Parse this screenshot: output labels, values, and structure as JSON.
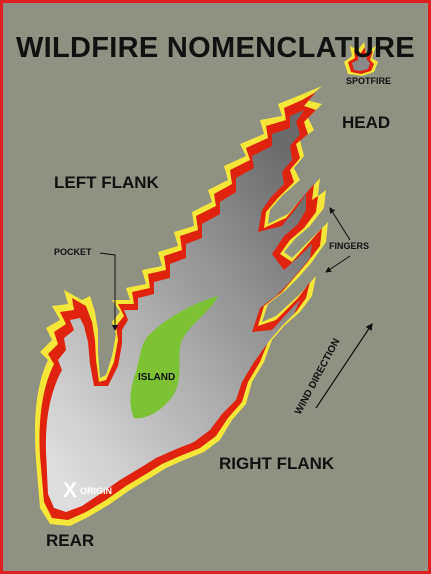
{
  "diagram": {
    "title": "WILDFIRE NOMENCLATURE",
    "labels": {
      "head": "HEAD",
      "left_flank": "LEFT FLANK",
      "right_flank": "RIGHT FLANK",
      "rear": "REAR",
      "pocket": "POCKET",
      "fingers": "FINGERS",
      "spotfire": "SPOTFIRE",
      "island": "ISLAND",
      "wind_direction": "WIND DIRECTION",
      "origin_mark": "X",
      "origin": "ORIGIN"
    }
  },
  "colors": {
    "background": "#8f9183",
    "border": "#e02020",
    "fire_yellow": "#f5e63a",
    "fire_red": "#e0230f",
    "burn_dark": "#707070",
    "burn_light": "#d6d6d6",
    "island": "#7cc233",
    "text": "#111111"
  }
}
